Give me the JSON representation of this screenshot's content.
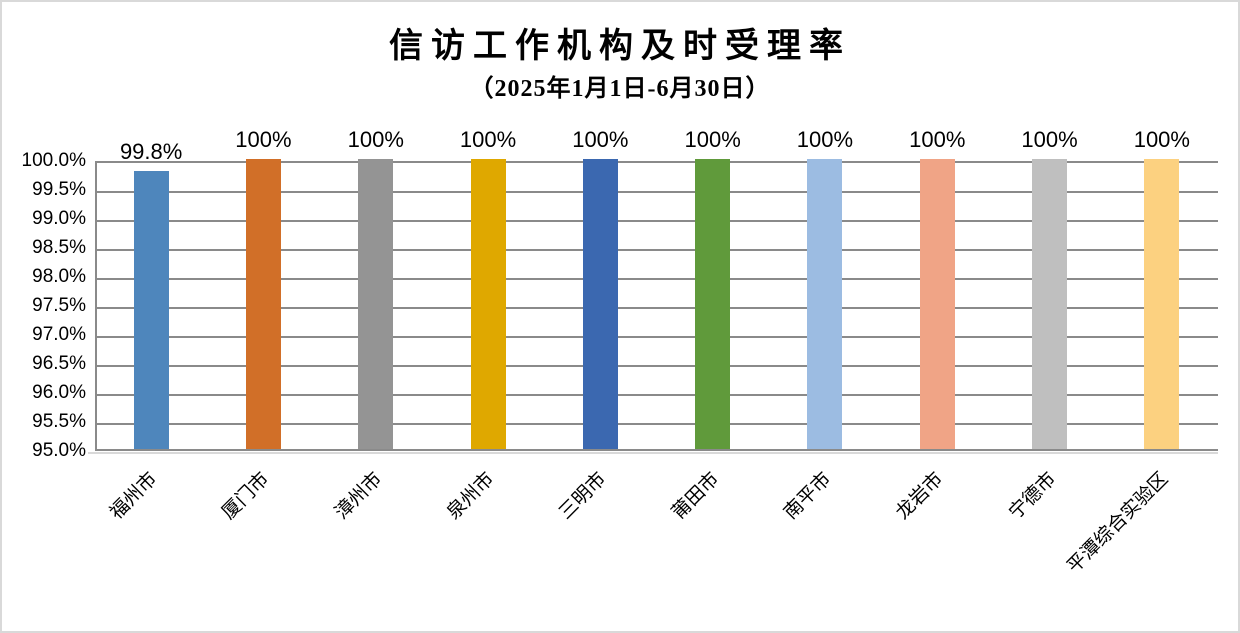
{
  "page": {
    "background_color": "#FFFFFF",
    "outer_border_color": "#D9D9D9"
  },
  "chart_data": {
    "type": "bar",
    "title": "信访工作机构及时受理率",
    "subtitle": "（2025年1月1日-6月30日）",
    "categories": [
      "福州市",
      "厦门市",
      "漳州市",
      "泉州市",
      "三明市",
      "莆田市",
      "南平市",
      "龙岩市",
      "宁德市",
      "平潭综合实验区"
    ],
    "values": [
      99.8,
      100,
      100,
      100,
      100,
      100,
      100,
      100,
      100,
      100
    ],
    "data_labels": [
      "99.8%",
      "100%",
      "100%",
      "100%",
      "100%",
      "100%",
      "100%",
      "100%",
      "100%",
      "100%"
    ],
    "bar_colors": [
      "#4E86BC",
      "#D16F28",
      "#949494",
      "#DFA800",
      "#3B68B0",
      "#609A3B",
      "#9CBCE2",
      "#F0A486",
      "#BFBFBF",
      "#FCD180"
    ],
    "ylim": [
      95.0,
      100.0
    ],
    "ytick_step": 0.5,
    "ytick_labels": [
      "100.0%",
      "99.5%",
      "99.0%",
      "98.5%",
      "98.0%",
      "97.5%",
      "97.0%",
      "96.5%",
      "96.0%",
      "95.5%",
      "95.0%"
    ],
    "xlabel": "",
    "ylabel": "",
    "grid": true,
    "gridline_color": "#8A8A8A",
    "axis_line_color": "#D9D9D9",
    "legend_position": "none",
    "text_color": "#000000"
  }
}
